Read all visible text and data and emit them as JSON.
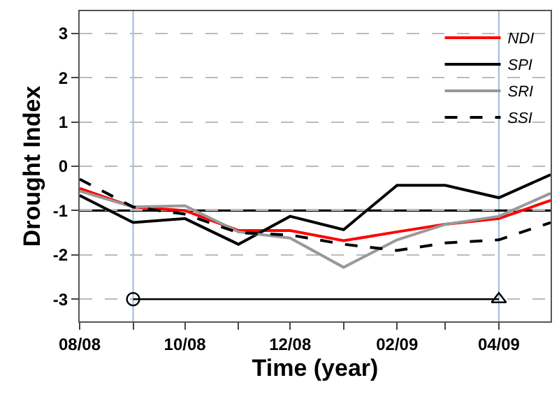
{
  "chart_data": {
    "type": "line",
    "xlabel": "Time (year)",
    "ylabel": "Drought Index",
    "x": [
      "2008-08",
      "2008-09",
      "2008-10",
      "2008-11",
      "2008-12",
      "2009-01",
      "2009-02",
      "2009-03",
      "2009-04",
      "2009-05"
    ],
    "series": [
      {
        "name": "NDI",
        "color": "#ff0000",
        "line_style": "solid",
        "values": [
          -0.5,
          -0.92,
          -1.0,
          -1.45,
          -1.45,
          -1.68,
          -1.48,
          -1.31,
          -1.18,
          -0.77
        ]
      },
      {
        "name": "SPI",
        "color": "#000000",
        "line_style": "solid",
        "values": [
          -0.66,
          -1.27,
          -1.18,
          -1.76,
          -1.13,
          -1.43,
          -0.43,
          -0.43,
          -0.71,
          -0.19
        ]
      },
      {
        "name": "SRI",
        "color": "#999999",
        "line_style": "solid",
        "values": [
          -0.56,
          -0.92,
          -0.89,
          -1.48,
          -1.62,
          -2.28,
          -1.66,
          -1.31,
          -1.13,
          -0.61
        ]
      },
      {
        "name": "SSI",
        "color": "#000000",
        "line_style": "dashed",
        "values": [
          -0.29,
          -0.92,
          -1.08,
          -1.5,
          -1.55,
          -1.76,
          -1.9,
          -1.73,
          -1.66,
          -1.27
        ]
      },
      {
        "color": "#000000",
        "line_style": "solid",
        "x": [
          "2008-09",
          "2009-04"
        ],
        "values": [
          -3,
          -3
        ],
        "marker": [
          "circle",
          "triangle"
        ]
      }
    ],
    "ref_lines": [
      {
        "axis": "x",
        "value": "2008-09",
        "color": "#9dbbdf"
      },
      {
        "axis": "x",
        "value": "2009-04",
        "color": "#9dbbdf"
      },
      {
        "axis": "y",
        "value": -1,
        "color": "#000000"
      }
    ],
    "xlim": [
      "2008-08",
      "2009-05"
    ],
    "xticks": [
      {
        "value": "2008-08",
        "label": "08/08"
      },
      {
        "value": "2008-09",
        "label": null
      },
      {
        "value": "2008-10",
        "label": "10/08"
      },
      {
        "value": "2008-11",
        "label": null
      },
      {
        "value": "2008-12",
        "label": "12/08"
      },
      {
        "value": "2009-01",
        "label": null
      },
      {
        "value": "2009-02",
        "label": "02/09"
      },
      {
        "value": "2009-03",
        "label": null
      },
      {
        "value": "2009-04",
        "label": "04/09"
      }
    ],
    "ylim": [
      -3.5,
      3.5
    ],
    "yticks": [
      -3,
      -2,
      -1,
      0,
      1,
      2,
      3
    ],
    "grid": "y",
    "legend": "top right",
    "marker": "none"
  }
}
